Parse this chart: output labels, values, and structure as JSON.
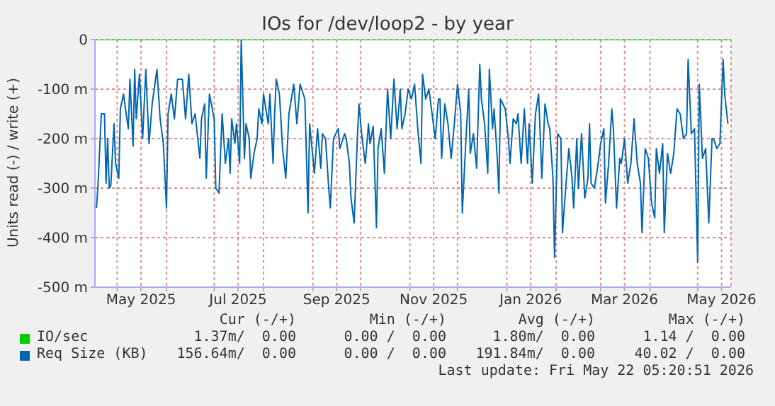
{
  "chart_data": {
    "type": "line",
    "title": "IOs for /dev/loop2 - by year",
    "ylabel": "Units read (-) / write (+)",
    "xlim": [
      "2025-04-17",
      "2026-05-22"
    ],
    "xticks": [
      {
        "value": "2025-05-01",
        "label": null
      },
      {
        "value": "2025-05-16",
        "label": "May 2025"
      },
      {
        "value": "2025-06-01",
        "label": null
      },
      {
        "value": "2025-07-01",
        "label": null
      },
      {
        "value": "2025-07-16",
        "label": "Jul 2025"
      },
      {
        "value": "2025-08-01",
        "label": null
      },
      {
        "value": "2025-09-01",
        "label": null
      },
      {
        "value": "2025-09-16",
        "label": "Sep 2025"
      },
      {
        "value": "2025-10-01",
        "label": null
      },
      {
        "value": "2025-11-01",
        "label": null
      },
      {
        "value": "2025-11-16",
        "label": "Nov 2025"
      },
      {
        "value": "2025-12-01",
        "label": null
      },
      {
        "value": "2026-01-01",
        "label": null
      },
      {
        "value": "2026-01-16",
        "label": "Jan 2026"
      },
      {
        "value": "2026-02-01",
        "label": null
      },
      {
        "value": "2026-03-01",
        "label": null
      },
      {
        "value": "2026-03-16",
        "label": "Mar 2026"
      },
      {
        "value": "2026-04-01",
        "label": null
      },
      {
        "value": "2026-05-01",
        "label": null
      },
      {
        "value": "2026-05-16",
        "label": "May 2026"
      }
    ],
    "ylim": [
      -500,
      0
    ],
    "yticks": [
      {
        "value": -500,
        "label": "-500 m"
      },
      {
        "value": -400,
        "label": "-400 m"
      },
      {
        "value": -300,
        "label": "-300 m"
      },
      {
        "value": -200,
        "label": "-200 m"
      },
      {
        "value": -100,
        "label": "-100 m"
      },
      0
    ],
    "grid": true,
    "legend": "bottom",
    "marker": "none",
    "line_style": "solid",
    "annotations": [
      "Cur (-/+)",
      "Min (-/+)",
      "Avg (-/+)",
      "Max (-/+)",
      "1.37m/  0.00",
      "0.00 /  0.00",
      "1.80m/  0.00",
      "1.14 /  0.00",
      "156.64m/  0.00",
      "0.00 /  0.00",
      "191.84m/  0.00",
      "40.02 /  0.00",
      "Last update: Fri May 22 05:20:51 2026"
    ],
    "series": [
      {
        "name": "IO/sec",
        "color": "#00cc00",
        "x": [
          "2025-04-17",
          "2026-05-22"
        ],
        "values": [
          0,
          0
        ]
      },
      {
        "name": "Req Size (KB)",
        "color": "#0066b3",
        "x": [
          "2025-04-18",
          "2025-04-19",
          "2025-04-21",
          "2025-04-23",
          "2025-04-24",
          "2025-04-25",
          "2025-04-26",
          "2025-04-27",
          "2025-04-29",
          "2025-04-30",
          "2025-05-02",
          "2025-05-03",
          "2025-05-05",
          "2025-05-06",
          "2025-05-08",
          "2025-05-09",
          "2025-05-11",
          "2025-05-12",
          "2025-05-13",
          "2025-05-15",
          "2025-05-17",
          "2025-05-19",
          "2025-05-21",
          "2025-05-23",
          "2025-05-26",
          "2025-05-28",
          "2025-05-30",
          "2025-06-01",
          "2025-06-02",
          "2025-06-04",
          "2025-06-06",
          "2025-06-08",
          "2025-06-11",
          "2025-06-13",
          "2025-06-15",
          "2025-06-17",
          "2025-06-19",
          "2025-06-22",
          "2025-06-23",
          "2025-06-25",
          "2025-06-26",
          "2025-06-28",
          "2025-07-01",
          "2025-07-02",
          "2025-07-04",
          "2025-07-06",
          "2025-07-08",
          "2025-07-10",
          "2025-07-11",
          "2025-07-12",
          "2025-07-14",
          "2025-07-15",
          "2025-07-17",
          "2025-07-18",
          "2025-07-20",
          "2025-07-21",
          "2025-07-23",
          "2025-07-24",
          "2025-07-26",
          "2025-07-28",
          "2025-07-29",
          "2025-07-31",
          "2025-08-01",
          "2025-08-04",
          "2025-08-05",
          "2025-08-07",
          "2025-08-08",
          "2025-08-09",
          "2025-08-11",
          "2025-08-13",
          "2025-08-15",
          "2025-08-17",
          "2025-08-20",
          "2025-08-22",
          "2025-08-24",
          "2025-08-27",
          "2025-08-29",
          "2025-08-30",
          "2025-09-02",
          "2025-09-04",
          "2025-09-06",
          "2025-09-07",
          "2025-09-09",
          "2025-09-11",
          "2025-09-12",
          "2025-09-14",
          "2025-09-17",
          "2025-09-18",
          "2025-09-21",
          "2025-09-22",
          "2025-09-24",
          "2025-09-25",
          "2025-09-27",
          "2025-09-29",
          "2025-09-30",
          "2025-10-02",
          "2025-10-04",
          "2025-10-06",
          "2025-10-07",
          "2025-10-09",
          "2025-10-11",
          "2025-10-12",
          "2025-10-14",
          "2025-10-16",
          "2025-10-18",
          "2025-10-20",
          "2025-10-22",
          "2025-10-24",
          "2025-10-26",
          "2025-10-27",
          "2025-10-29",
          "2025-10-31",
          "2025-11-02",
          "2025-11-04",
          "2025-11-06",
          "2025-11-08",
          "2025-11-09",
          "2025-11-11",
          "2025-11-13",
          "2025-11-15",
          "2025-11-17",
          "2025-11-19",
          "2025-11-20",
          "2025-11-21",
          "2025-11-23",
          "2025-11-25",
          "2025-11-27",
          "2025-11-29",
          "2025-12-01",
          "2025-12-03",
          "2025-12-04",
          "2025-12-06",
          "2025-12-08",
          "2025-12-09",
          "2025-12-11",
          "2025-12-13",
          "2025-12-15",
          "2025-12-16",
          "2025-12-18",
          "2025-12-20",
          "2025-12-21",
          "2025-12-23",
          "2025-12-24",
          "2025-12-26",
          "2025-12-27",
          "2025-12-28",
          "2025-12-31",
          "2026-01-02",
          "2026-01-03",
          "2026-01-05",
          "2026-01-07",
          "2026-01-08",
          "2026-01-10",
          "2026-01-12",
          "2026-01-14",
          "2026-01-15",
          "2026-01-17",
          "2026-01-19",
          "2026-01-21",
          "2026-01-23",
          "2026-01-25",
          "2026-01-27",
          "2026-01-28",
          "2026-01-30",
          "2026-01-31",
          "2026-02-02",
          "2026-02-04",
          "2026-02-05",
          "2026-02-07",
          "2026-02-09",
          "2026-02-11",
          "2026-02-12",
          "2026-02-14",
          "2026-02-15",
          "2026-02-17",
          "2026-02-19",
          "2026-02-21",
          "2026-02-22",
          "2026-02-23",
          "2026-02-25",
          "2026-02-27",
          "2026-03-01",
          "2026-03-03",
          "2026-03-04",
          "2026-03-06",
          "2026-03-08",
          "2026-03-09",
          "2026-03-11",
          "2026-03-13",
          "2026-03-14",
          "2026-03-16",
          "2026-03-18",
          "2026-03-20",
          "2026-03-22",
          "2026-03-24",
          "2026-03-26",
          "2026-03-27",
          "2026-03-29",
          "2026-03-31",
          "2026-04-02",
          "2026-04-04",
          "2026-04-05",
          "2026-04-07",
          "2026-04-09",
          "2026-04-10",
          "2026-04-12",
          "2026-04-14",
          "2026-04-16",
          "2026-04-18",
          "2026-04-20",
          "2026-04-22",
          "2026-04-24",
          "2026-04-25",
          "2026-04-27",
          "2026-04-29",
          "2026-05-01",
          "2026-05-02",
          "2026-05-04",
          "2026-05-06",
          "2026-05-08",
          "2026-05-10",
          "2026-05-11",
          "2026-05-13",
          "2026-05-15",
          "2026-05-17",
          "2026-05-18",
          "2026-05-20"
        ],
        "values": [
          -340,
          -290,
          -150,
          -150,
          -290,
          -200,
          -300,
          -295,
          -170,
          -250,
          -280,
          -140,
          -110,
          -135,
          -180,
          -80,
          -215,
          -60,
          -160,
          -70,
          -200,
          -60,
          -210,
          -130,
          -60,
          -160,
          -210,
          -340,
          -150,
          -110,
          -160,
          -80,
          -80,
          -160,
          -70,
          -170,
          -150,
          -240,
          -160,
          -130,
          -280,
          -110,
          -160,
          -300,
          -310,
          -150,
          -250,
          -200,
          -270,
          -160,
          -210,
          -170,
          -250,
          0,
          -240,
          -170,
          -200,
          -280,
          -230,
          -200,
          -140,
          -170,
          -110,
          -170,
          -110,
          -250,
          -150,
          -80,
          -110,
          -220,
          -280,
          -150,
          -90,
          -170,
          -90,
          -120,
          -350,
          -170,
          -270,
          -180,
          -260,
          -190,
          -200,
          -300,
          -340,
          -200,
          -180,
          -220,
          -190,
          -200,
          -250,
          -320,
          -370,
          -200,
          -130,
          -200,
          -250,
          -170,
          -210,
          -175,
          -380,
          -220,
          -180,
          -270,
          -100,
          -200,
          -80,
          -180,
          -100,
          -180,
          -150,
          -100,
          -120,
          -90,
          -180,
          -250,
          -70,
          -120,
          -100,
          -150,
          -200,
          -120,
          -120,
          -240,
          -130,
          -170,
          -240,
          -170,
          -90,
          -150,
          -350,
          -220,
          -100,
          -230,
          -190,
          -260,
          -50,
          -120,
          -170,
          -270,
          -60,
          -180,
          -140,
          -240,
          -310,
          -120,
          -140,
          -200,
          -250,
          -160,
          -170,
          -150,
          -250,
          -140,
          -250,
          -170,
          -290,
          -150,
          -110,
          -280,
          -130,
          -170,
          -180,
          -280,
          -440,
          -190,
          -200,
          -390,
          -300,
          -220,
          -280,
          -340,
          -200,
          -300,
          -190,
          -320,
          -280,
          -170,
          -290,
          -300,
          -260,
          -210,
          -180,
          -330,
          -250,
          -140,
          -180,
          -340,
          -240,
          -250,
          -200,
          -290,
          -250,
          -160,
          -250,
          -290,
          -390,
          -220,
          -240,
          -330,
          -360,
          -220,
          -270,
          -210,
          -390,
          -230,
          -270,
          -230,
          -140,
          -150,
          -200,
          -190,
          -40,
          -190,
          -180,
          -450,
          -90,
          -240,
          -220,
          -370,
          -200,
          -200,
          -220,
          -210,
          -40,
          -110,
          -170
        ]
      }
    ]
  }
}
